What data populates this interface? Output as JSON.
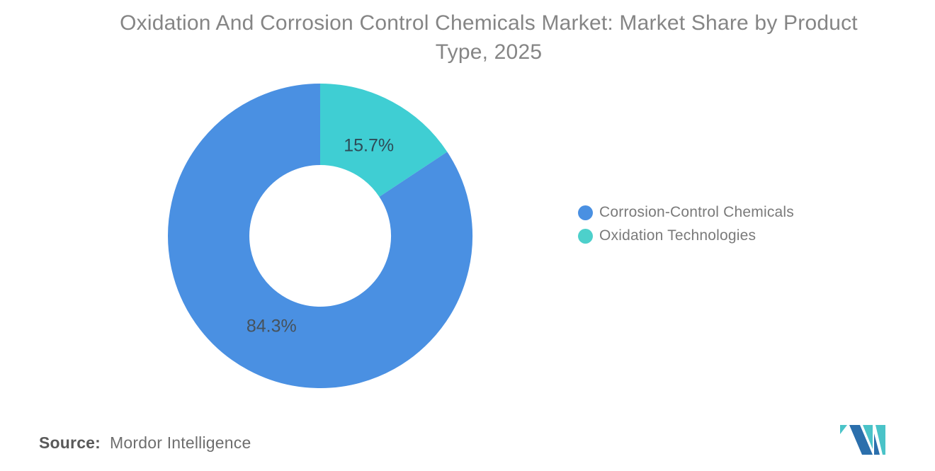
{
  "title": {
    "line1": "Oxidation And Corrosion Control Chemicals Market: Market Share by Product",
    "line2": "Type, 2025",
    "full": "Oxidation And Corrosion Control Chemicals Market: Market Share by Product Type, 2025",
    "color": "#858585"
  },
  "chart_data": {
    "type": "pie",
    "subtype": "donut",
    "title": "Oxidation And Corrosion Control Chemicals Market: Market Share by Product Type, 2025",
    "unit": "percent",
    "start_angle_deg": -90,
    "direction": "clockwise",
    "inner_outer_radius_ratio": 0.465,
    "legend_position": "right",
    "slices": [
      {
        "name": "Oxidation Technologies",
        "value": 15.7,
        "label": "15.7%",
        "color": "#3FCED3",
        "label_color": "#2E4B57"
      },
      {
        "name": "Corrosion-Control Chemicals",
        "value": 84.3,
        "label": "84.3%",
        "color": "#4A90E2",
        "label_color": "#46525C"
      }
    ]
  },
  "legend": {
    "items": [
      {
        "label": "Corrosion-Control Chemicals",
        "color": "#4A90E2"
      },
      {
        "label": "Oxidation Technologies",
        "color": "#4DD0CB"
      }
    ],
    "text_color": "#7a7a7a"
  },
  "source": {
    "label": "Source:",
    "value": "Mordor Intelligence"
  },
  "logo": {
    "name": "mordor-intelligence-logo",
    "teal": "#4AC3C8",
    "blue": "#2B6FAC"
  }
}
